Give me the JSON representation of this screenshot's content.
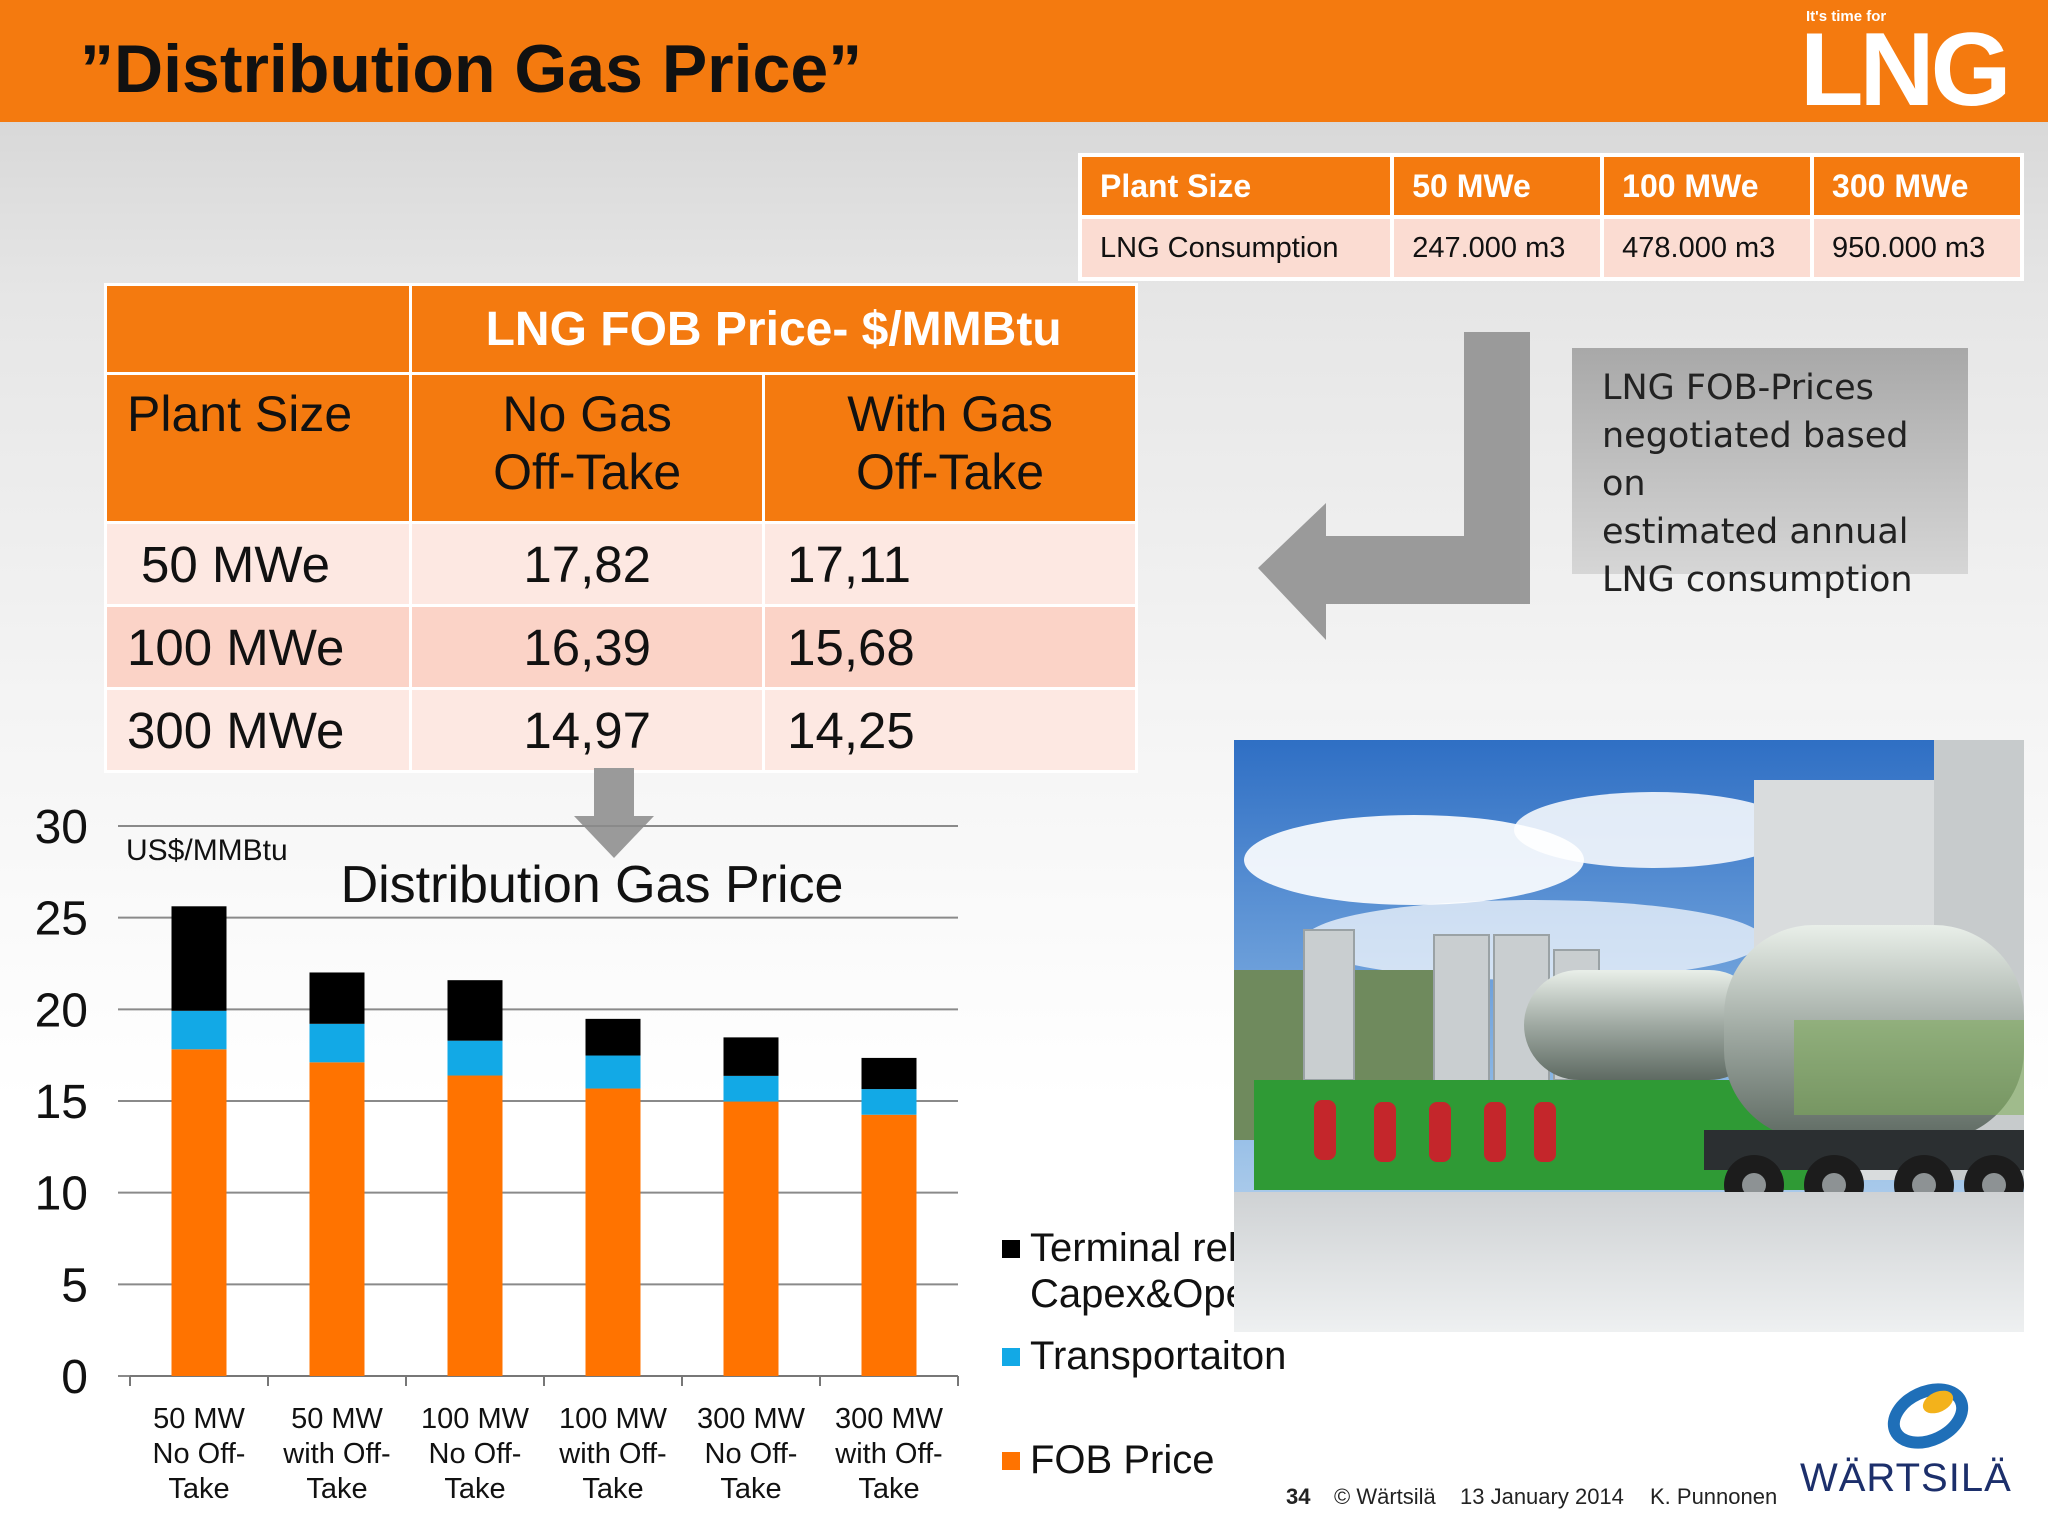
{
  "header": {
    "title": "”Distribution Gas Price”",
    "logo_small": "It's time for",
    "logo_big": "LNG"
  },
  "consumption_table": {
    "headers": [
      "Plant Size",
      "50 MWe",
      "100 MWe",
      "300 MWe"
    ],
    "row": [
      "LNG Consumption",
      "247.000 m3",
      "478.000 m3",
      "950.000 m3"
    ]
  },
  "fob_table": {
    "title": "LNG FOB Price- $/MMBtu",
    "col_plant": "Plant Size",
    "col_no_line1": "No Gas",
    "col_no_line2": "Off-Take",
    "col_with_line1": "With Gas",
    "col_with_line2": "Off-Take",
    "rows": [
      [
        "50 MWe",
        "17,82",
        "17,11"
      ],
      [
        "100 MWe",
        "16,39",
        "15,68"
      ],
      [
        "300 MWe",
        "14,97",
        "14,25"
      ]
    ]
  },
  "callout": {
    "lines": [
      "LNG FOB-Prices",
      "negotiated based on",
      "estimated annual",
      "LNG consumption"
    ]
  },
  "chart_data": {
    "type": "bar",
    "stacked": true,
    "title": "Distribution Gas Price",
    "ylabel": "US$/MMBtu",
    "ylim": [
      0,
      30
    ],
    "yticks": [
      "0",
      "5",
      "10",
      "15",
      "20",
      "25",
      "30"
    ],
    "grid": true,
    "categories": [
      [
        "50 MW",
        "No Off-",
        "Take"
      ],
      [
        "50 MW",
        "with Off-",
        "Take"
      ],
      [
        "100 MW",
        "No Off-",
        "Take"
      ],
      [
        "100 MW",
        "with Off-",
        "Take"
      ],
      [
        "300 MW",
        "No Off-",
        "Take"
      ],
      [
        "300 MW",
        "with Off-",
        "Take"
      ]
    ],
    "series": [
      {
        "name": "FOB Price",
        "color": "#ff7300",
        "values": [
          17.82,
          17.11,
          16.39,
          15.68,
          14.97,
          14.25
        ]
      },
      {
        "name": "Transportaiton",
        "color": "#12a9e6",
        "values": [
          2.1,
          2.1,
          1.9,
          1.8,
          1.4,
          1.4
        ]
      },
      {
        "name": "Terminal related Capex&Opex",
        "color": "#000000",
        "values": [
          5.7,
          2.8,
          3.3,
          2.0,
          2.1,
          1.7
        ]
      }
    ],
    "legend": [
      {
        "lines": [
          "Terminal related",
          "Capex&Opex"
        ],
        "color": "#000000"
      },
      {
        "lines": [
          "Transportaiton"
        ],
        "color": "#12a9e6"
      },
      {
        "lines": [
          "FOB Price"
        ],
        "color": "#ff7300"
      }
    ],
    "legend_position": "right"
  },
  "footer": {
    "page": "34",
    "copyright": "© Wärtsilä",
    "date": "13 January 2014",
    "author": "K. Punnonen",
    "brand": "WÄRTSILÄ"
  }
}
